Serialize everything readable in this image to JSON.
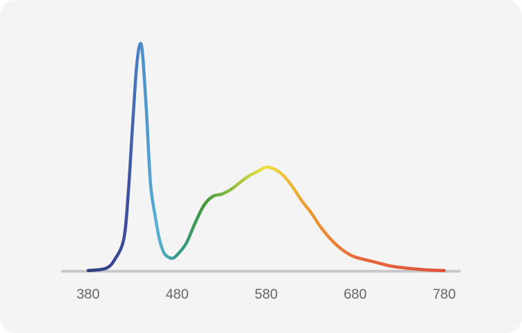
{
  "chart_data": {
    "type": "line",
    "x": [
      380,
      400,
      410,
      420,
      425,
      430,
      435,
      440,
      445,
      450,
      455,
      460,
      465,
      470,
      475,
      480,
      490,
      500,
      510,
      520,
      530,
      540,
      550,
      560,
      570,
      580,
      590,
      600,
      610,
      620,
      630,
      640,
      650,
      660,
      670,
      680,
      700,
      720,
      740,
      760,
      780
    ],
    "values": [
      0,
      0.01,
      0.05,
      0.14,
      0.34,
      0.65,
      0.93,
      1.0,
      0.74,
      0.39,
      0.25,
      0.14,
      0.08,
      0.06,
      0.055,
      0.07,
      0.12,
      0.21,
      0.29,
      0.33,
      0.34,
      0.36,
      0.39,
      0.42,
      0.44,
      0.46,
      0.45,
      0.42,
      0.37,
      0.31,
      0.26,
      0.2,
      0.15,
      0.11,
      0.08,
      0.06,
      0.04,
      0.02,
      0.01,
      0.003,
      0
    ],
    "xlim": [
      380,
      780
    ],
    "xticks": [
      380,
      480,
      580,
      680,
      780
    ],
    "ylim": [
      0,
      1
    ],
    "grid": false
  }
}
